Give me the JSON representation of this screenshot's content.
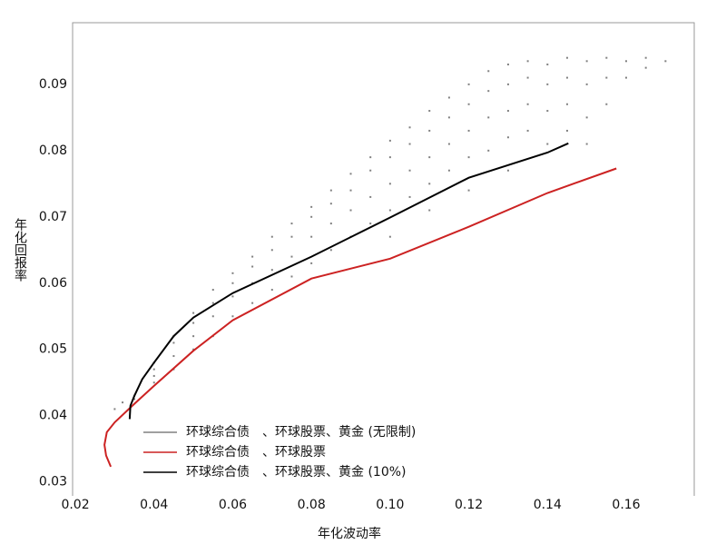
{
  "chart_data": {
    "type": "scatter",
    "xlabel": "年化波动率",
    "ylabel": "年化回报率",
    "xlim": [
      0.0193,
      0.1773
    ],
    "ylim": [
      0.0279,
      0.0993
    ],
    "xticks": [
      0.02,
      0.04,
      0.06,
      0.08,
      {
        "value": 0.1,
        "label": "0.10"
      },
      0.12,
      0.14,
      0.16
    ],
    "yticks": [
      0.03,
      0.04,
      0.05,
      0.06,
      0.07,
      0.08,
      0.09
    ],
    "series": [
      {
        "name": "环球综合债　、环球股票、黄金 (无限制)",
        "color": "#808080",
        "type": "scatter",
        "x": [
          0.03,
          0.032,
          0.035,
          0.035,
          0.04,
          0.04,
          0.04,
          0.04,
          0.045,
          0.045,
          0.045,
          0.045,
          0.05,
          0.05,
          0.05,
          0.05,
          0.055,
          0.055,
          0.055,
          0.055,
          0.06,
          0.06,
          0.06,
          0.06,
          0.065,
          0.065,
          0.065,
          0.065,
          0.07,
          0.07,
          0.07,
          0.07,
          0.075,
          0.075,
          0.075,
          0.075,
          0.08,
          0.08,
          0.08,
          0.08,
          0.085,
          0.085,
          0.085,
          0.085,
          0.09,
          0.09,
          0.09,
          0.09,
          0.095,
          0.095,
          0.095,
          0.095,
          0.1,
          0.1,
          0.1,
          0.1,
          0.1,
          0.105,
          0.105,
          0.105,
          0.105,
          0.11,
          0.11,
          0.11,
          0.11,
          0.11,
          0.115,
          0.115,
          0.115,
          0.115,
          0.12,
          0.12,
          0.12,
          0.12,
          0.12,
          0.125,
          0.125,
          0.125,
          0.125,
          0.13,
          0.13,
          0.13,
          0.13,
          0.13,
          0.135,
          0.135,
          0.135,
          0.135,
          0.14,
          0.14,
          0.14,
          0.14,
          0.145,
          0.145,
          0.145,
          0.145,
          0.15,
          0.15,
          0.15,
          0.15,
          0.155,
          0.155,
          0.155,
          0.16,
          0.16,
          0.165,
          0.165,
          0.17
        ],
        "values": [
          0.041,
          0.042,
          0.043,
          0.0425,
          0.048,
          0.047,
          0.046,
          0.045,
          0.052,
          0.051,
          0.049,
          0.047,
          0.0555,
          0.054,
          0.052,
          0.05,
          0.059,
          0.057,
          0.055,
          0.052,
          0.0615,
          0.06,
          0.058,
          0.055,
          0.064,
          0.0625,
          0.06,
          0.057,
          0.067,
          0.065,
          0.062,
          0.059,
          0.069,
          0.067,
          0.064,
          0.061,
          0.0715,
          0.07,
          0.067,
          0.063,
          0.074,
          0.072,
          0.069,
          0.065,
          0.0765,
          0.074,
          0.071,
          0.067,
          0.079,
          0.077,
          0.073,
          0.069,
          0.0815,
          0.079,
          0.075,
          0.071,
          0.067,
          0.0835,
          0.081,
          0.077,
          0.073,
          0.086,
          0.083,
          0.079,
          0.075,
          0.071,
          0.088,
          0.085,
          0.081,
          0.077,
          0.09,
          0.087,
          0.083,
          0.079,
          0.074,
          0.092,
          0.089,
          0.085,
          0.08,
          0.093,
          0.09,
          0.086,
          0.082,
          0.077,
          0.0935,
          0.091,
          0.087,
          0.083,
          0.093,
          0.09,
          0.086,
          0.081,
          0.094,
          0.091,
          0.087,
          0.083,
          0.0935,
          0.09,
          0.085,
          0.081,
          0.094,
          0.091,
          0.087,
          0.0935,
          0.091,
          0.094,
          0.0925,
          0.0935
        ]
      },
      {
        "name": "环球综合债　、环球股票",
        "color": "#cc2222",
        "type": "line",
        "x": [
          0.029,
          0.0278,
          0.0274,
          0.028,
          0.03,
          0.035,
          0.04,
          0.05,
          0.06,
          0.08,
          0.1,
          0.12,
          0.14,
          0.1575
        ],
        "values": [
          0.0323,
          0.034,
          0.0356,
          0.0375,
          0.039,
          0.0418,
          0.0445,
          0.0498,
          0.0544,
          0.0607,
          0.0637,
          0.0685,
          0.0736,
          0.0773
        ]
      },
      {
        "name": "环球综合债　、环球股票、黄金 (10%)",
        "color": "#000000",
        "type": "line",
        "x": [
          0.0338,
          0.034,
          0.035,
          0.037,
          0.04,
          0.045,
          0.05,
          0.06,
          0.08,
          0.1,
          0.12,
          0.14,
          0.1453
        ],
        "values": [
          0.0395,
          0.0415,
          0.043,
          0.0455,
          0.048,
          0.052,
          0.0548,
          0.0585,
          0.064,
          0.0699,
          0.0759,
          0.0797,
          0.0811
        ]
      }
    ]
  }
}
